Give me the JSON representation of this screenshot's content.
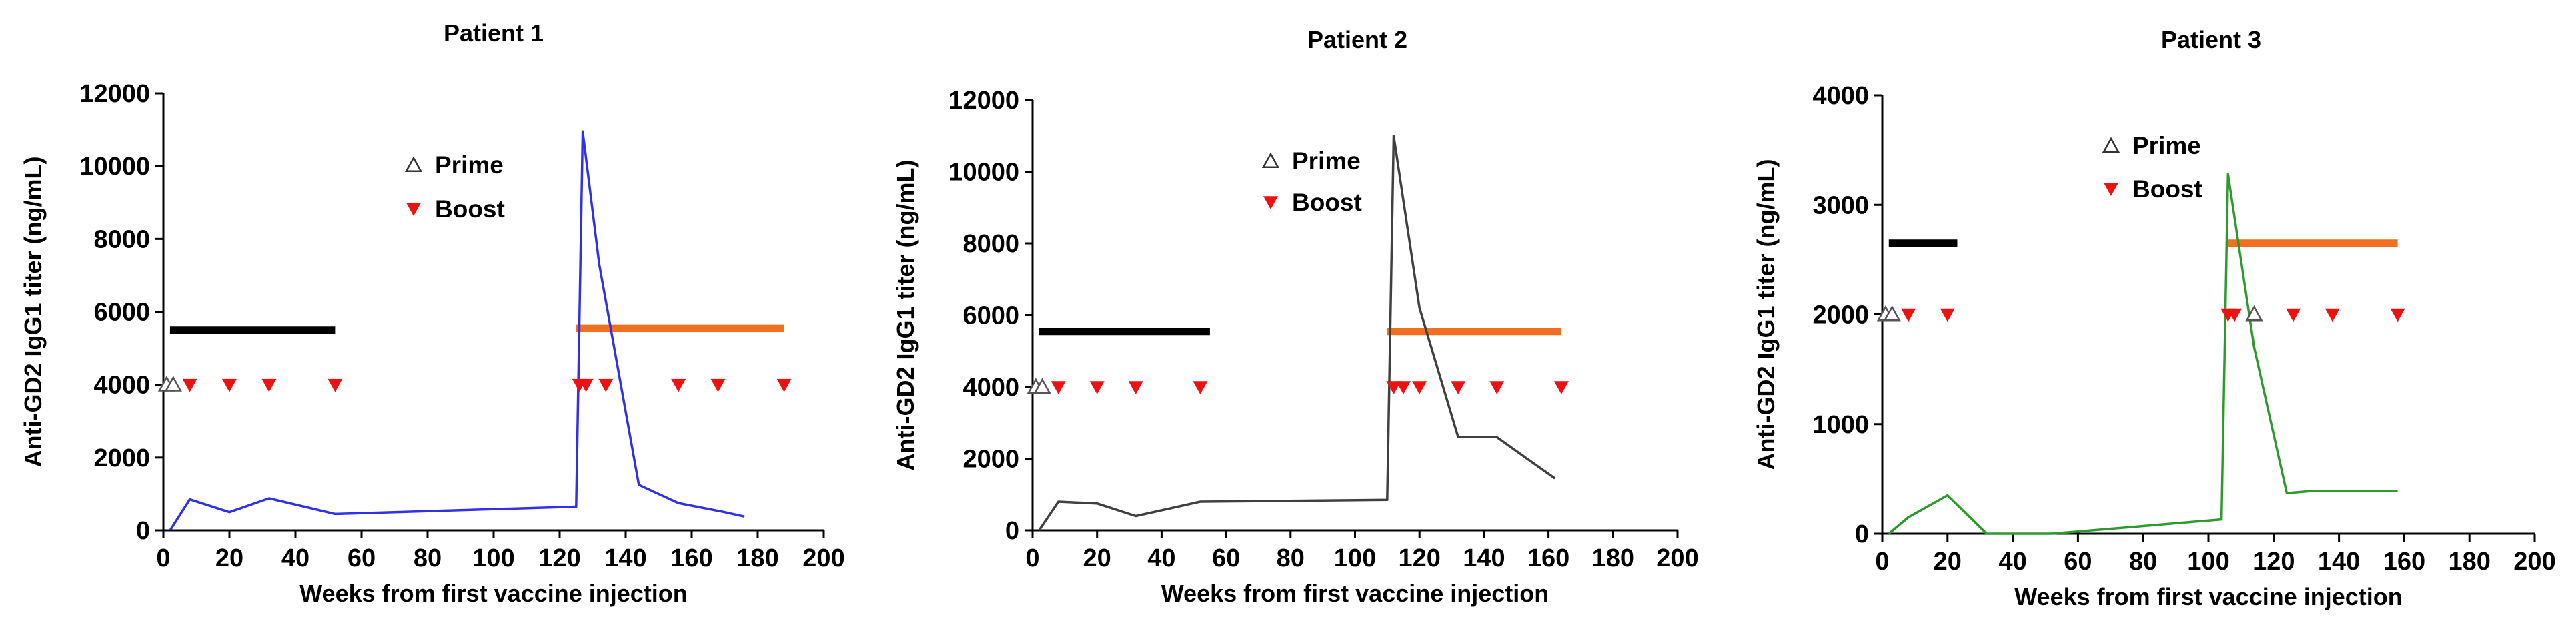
{
  "chart_data": [
    {
      "type": "line",
      "title": "Patient 1",
      "xlabel": "Weeks from first vaccine injection",
      "ylabel": "Anti-GD2 IgG1 titer (ng/mL)",
      "xlim": [
        0,
        200
      ],
      "ylim": [
        0,
        12000
      ],
      "xticks": [
        0,
        20,
        40,
        60,
        80,
        100,
        120,
        140,
        160,
        180,
        200
      ],
      "yticks": [
        0,
        2000,
        4000,
        6000,
        8000,
        10000,
        12000
      ],
      "line_color": "#3030e8",
      "series": [
        {
          "name": "titer",
          "x": [
            2,
            8,
            20,
            32,
            52,
            125,
            127,
            132,
            144,
            156,
            170,
            176
          ],
          "y": [
            0,
            850,
            500,
            880,
            450,
            650,
            10950,
            7300,
            1250,
            750,
            500,
            380
          ]
        }
      ],
      "prime": {
        "x": [
          1,
          3
        ],
        "y": 4000
      },
      "boost": {
        "x": [
          8,
          20,
          32,
          52,
          126,
          128,
          134,
          156,
          168,
          188
        ],
        "y": 4000
      },
      "bars": [
        {
          "x0": 2,
          "x1": 52,
          "y": 5500,
          "color": "#000000"
        },
        {
          "x0": 125,
          "x1": 188,
          "y": 5550,
          "color": "#f07020"
        }
      ],
      "legend": {
        "prime_label": "Prime",
        "boost_label": "Boost",
        "position": "top-center"
      }
    },
    {
      "type": "line",
      "title": "Patient 2",
      "xlabel": "Weeks from first vaccine injection",
      "ylabel": "Anti-GD2 IgG1 titer (ng/mL)",
      "xlim": [
        0,
        200
      ],
      "ylim": [
        0,
        12000
      ],
      "xticks": [
        0,
        20,
        40,
        60,
        80,
        100,
        120,
        140,
        160,
        180,
        200
      ],
      "yticks": [
        0,
        2000,
        4000,
        6000,
        8000,
        10000,
        12000
      ],
      "line_color": "#404040",
      "series": [
        {
          "name": "titer",
          "x": [
            2,
            8,
            20,
            32,
            52,
            110,
            112,
            120,
            132,
            144,
            162
          ],
          "y": [
            0,
            800,
            750,
            400,
            800,
            850,
            11000,
            6200,
            2600,
            2600,
            1450
          ]
        }
      ],
      "prime": {
        "x": [
          1,
          3
        ],
        "y": 4000
      },
      "boost": {
        "x": [
          8,
          20,
          32,
          52,
          112,
          115,
          120,
          132,
          144,
          164
        ],
        "y": 4000
      },
      "bars": [
        {
          "x0": 2,
          "x1": 55,
          "y": 5550,
          "color": "#000000"
        },
        {
          "x0": 110,
          "x1": 164,
          "y": 5550,
          "color": "#f07020"
        }
      ],
      "legend": {
        "prime_label": "Prime",
        "boost_label": "Boost",
        "position": "top-center"
      }
    },
    {
      "type": "line",
      "title": "Patient 3",
      "xlabel": "Weeks from first vaccine injection",
      "ylabel": "Anti-GD2 IgG1 titer (ng/mL)",
      "xlim": [
        0,
        200
      ],
      "ylim": [
        0,
        4000
      ],
      "xticks": [
        0,
        20,
        40,
        60,
        80,
        100,
        120,
        140,
        160,
        180,
        200
      ],
      "yticks": [
        0,
        1000,
        2000,
        3000,
        4000
      ],
      "line_color": "#2e9a2e",
      "series": [
        {
          "name": "titer",
          "x": [
            2,
            8,
            20,
            32,
            52,
            104,
            106,
            114,
            124,
            132,
            158
          ],
          "y": [
            0,
            150,
            350,
            0,
            0,
            130,
            3280,
            1700,
            370,
            390,
            390
          ]
        }
      ],
      "prime": {
        "x": [
          1,
          3
        ],
        "y": 2000
      },
      "boost": {
        "x": [
          8,
          20,
          106,
          108,
          126,
          138,
          158
        ],
        "y": 2000
      },
      "prime_extra": {
        "x": [
          114
        ],
        "y": 2000
      },
      "bars": [
        {
          "x0": 2,
          "x1": 23,
          "y": 2650,
          "color": "#000000"
        },
        {
          "x0": 106,
          "x1": 158,
          "y": 2650,
          "color": "#f07020"
        }
      ],
      "legend": {
        "prime_label": "Prime",
        "boost_label": "Boost",
        "position": "top-center"
      }
    }
  ]
}
